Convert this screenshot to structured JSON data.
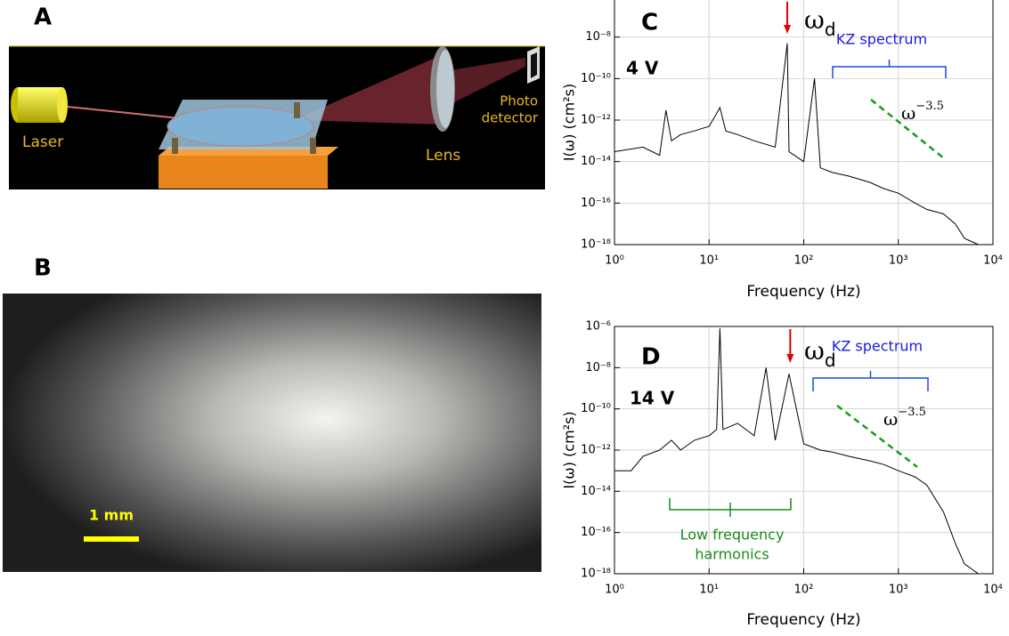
{
  "panels": {
    "A": {
      "label": "A",
      "laser": "Laser",
      "lens": "Lens",
      "detector": [
        "Photo",
        "detector"
      ]
    },
    "B": {
      "label": "B",
      "scale_bar": "1 mm"
    }
  },
  "chart_data": [
    {
      "type": "line",
      "color": "#000000",
      "log_x": true,
      "log_y": true,
      "grid": true,
      "xlabel": "Frequency (Hz)",
      "ylabel": "I(ω) (cm²s)",
      "xlim": [
        1,
        10000
      ],
      "ylim": [
        1e-18,
        1e-06
      ],
      "xticks": [
        {
          "value": 1,
          "label": "10⁰"
        },
        {
          "value": 10,
          "label": "10¹"
        },
        {
          "value": 100,
          "label": "10²"
        },
        {
          "value": 1000,
          "label": "10³"
        },
        {
          "value": 10000,
          "label": "10⁴"
        }
      ],
      "yticks": [
        {
          "value": 1e-18,
          "label": "10⁻¹⁸"
        },
        {
          "value": 1e-16,
          "label": "10⁻¹⁶"
        },
        {
          "value": 1e-14,
          "label": "10⁻¹⁴"
        },
        {
          "value": 1e-12,
          "label": "10⁻¹²"
        },
        {
          "value": 1e-10,
          "label": "10⁻¹⁰"
        },
        {
          "value": 1e-08,
          "label": "10⁻⁸"
        }
      ],
      "x": [
        1,
        2,
        3,
        3.5,
        4,
        5,
        7,
        10,
        13,
        15,
        20,
        30,
        50,
        67,
        70,
        100,
        130,
        150,
        200,
        300,
        500,
        700,
        1000,
        1500,
        2000,
        3000,
        4000,
        5000,
        7000,
        10000
      ],
      "values": [
        3e-14,
        5e-14,
        2e-14,
        3e-12,
        1e-13,
        2e-13,
        3e-13,
        5e-13,
        4e-12,
        3e-13,
        2e-13,
        1e-13,
        5e-14,
        5e-09,
        3e-14,
        1e-14,
        1e-10,
        5e-15,
        3e-15,
        2e-15,
        1e-15,
        5e-16,
        3e-16,
        1e-16,
        5e-17,
        3e-17,
        1e-17,
        2e-18,
        1e-18,
        1e-18
      ],
      "annotations": {
        "panel": "C",
        "voltage": "4 V",
        "drive": {
          "symbol": "ω",
          "subscript": "d"
        },
        "kz": "KZ spectrum",
        "power_law": {
          "base": "ω",
          "exponent": "−3.5"
        }
      }
    },
    {
      "type": "line",
      "color": "#000000",
      "log_x": true,
      "log_y": true,
      "grid": true,
      "xlabel": "Frequency (Hz)",
      "ylabel": "I(ω) (cm²s)",
      "xlim": [
        1,
        10000
      ],
      "ylim": [
        1e-18,
        1e-06
      ],
      "xticks": [
        {
          "value": 1,
          "label": "10⁰"
        },
        {
          "value": 10,
          "label": "10¹"
        },
        {
          "value": 100,
          "label": "10²"
        },
        {
          "value": 1000,
          "label": "10³"
        },
        {
          "value": 10000,
          "label": "10⁴"
        }
      ],
      "yticks": [
        {
          "value": 1e-18,
          "label": "10⁻¹⁸"
        },
        {
          "value": 1e-16,
          "label": "10⁻¹⁶"
        },
        {
          "value": 1e-14,
          "label": "10⁻¹⁴"
        },
        {
          "value": 1e-12,
          "label": "10⁻¹²"
        },
        {
          "value": 1e-10,
          "label": "10⁻¹⁰"
        },
        {
          "value": 1e-08,
          "label": "10⁻⁸"
        },
        {
          "value": 1e-06,
          "label": "10⁻⁶"
        }
      ],
      "x": [
        1,
        1.5,
        2,
        3,
        4,
        5,
        7,
        10,
        12,
        13,
        14,
        20,
        30,
        40,
        50,
        70,
        100,
        150,
        200,
        300,
        500,
        700,
        1000,
        1500,
        2000,
        3000,
        4000,
        5000,
        7000,
        10000
      ],
      "values": [
        1e-13,
        1e-13,
        5e-13,
        1e-12,
        3e-12,
        1e-12,
        3e-12,
        5e-12,
        1e-11,
        8e-07,
        1e-11,
        2e-11,
        5e-12,
        1e-08,
        3e-12,
        5e-09,
        2e-12,
        1e-12,
        8e-13,
        5e-13,
        3e-13,
        2e-13,
        1e-13,
        5e-14,
        2e-14,
        1e-15,
        3e-17,
        3e-18,
        1e-18,
        1e-18
      ],
      "annotations": {
        "panel": "D",
        "voltage": "14 V",
        "drive": {
          "symbol": "ω",
          "subscript": "d"
        },
        "kz": "KZ spectrum",
        "power_law": {
          "base": "ω",
          "exponent": "−3.5"
        },
        "low_freq": [
          "Low frequency",
          "harmonics"
        ]
      }
    }
  ]
}
